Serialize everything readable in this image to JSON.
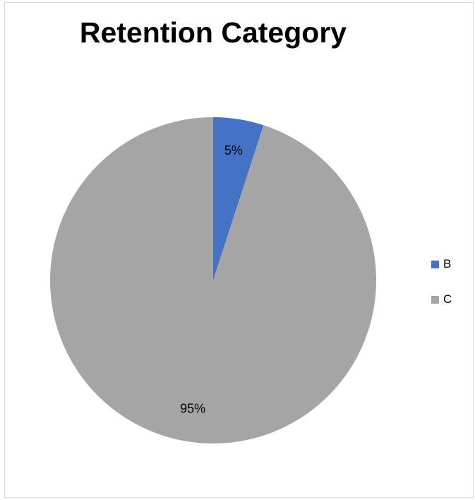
{
  "chart_data": {
    "type": "pie",
    "title": "Retention Category",
    "categories": [
      "B",
      "C"
    ],
    "values": [
      5,
      95
    ],
    "labels": [
      "5%",
      "95%"
    ],
    "colors": [
      "#4472c4",
      "#a5a5a5"
    ],
    "legend": {
      "placement": "right",
      "items": [
        {
          "label": "B",
          "color": "#4472c4"
        },
        {
          "label": "C",
          "color": "#a5a5a5"
        }
      ]
    }
  }
}
